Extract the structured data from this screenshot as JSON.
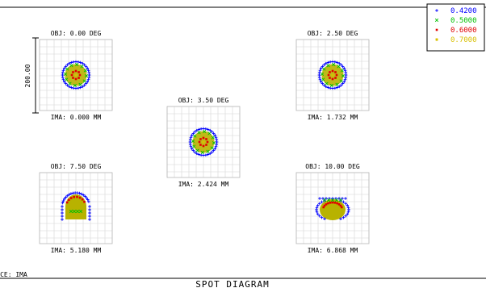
{
  "chart_data": {
    "type": "scatter",
    "title": "SPOT DIAGRAM",
    "surface_label": "SURFACE: IMA",
    "scale_bar_label": "200.00",
    "grid": true,
    "legend_placement": "top-right",
    "series": [
      {
        "name": "0.4200",
        "color": "#0000ff",
        "marker": "+"
      },
      {
        "name": "0.5000",
        "color": "#00c000",
        "marker": "x"
      },
      {
        "name": "0.6000",
        "color": "#e00000",
        "marker": "square"
      },
      {
        "name": "0.7000",
        "color": "#d8c000",
        "marker": "asterisk"
      }
    ],
    "fields": [
      {
        "object_label": "OBJ: 0.00 DEG",
        "image_label": "IMA: 0.000 MM"
      },
      {
        "object_label": "OBJ: 2.50 DEG",
        "image_label": "IMA: 1.732 MM"
      },
      {
        "object_label": "OBJ: 3.50 DEG",
        "image_label": "IMA: 2.424 MM"
      },
      {
        "object_label": "OBJ: 7.50 DEG",
        "image_label": "IMA: 5.180 MM"
      },
      {
        "object_label": "OBJ: 10.00 DEG",
        "image_label": "IMA: 6.868 MM"
      }
    ]
  }
}
